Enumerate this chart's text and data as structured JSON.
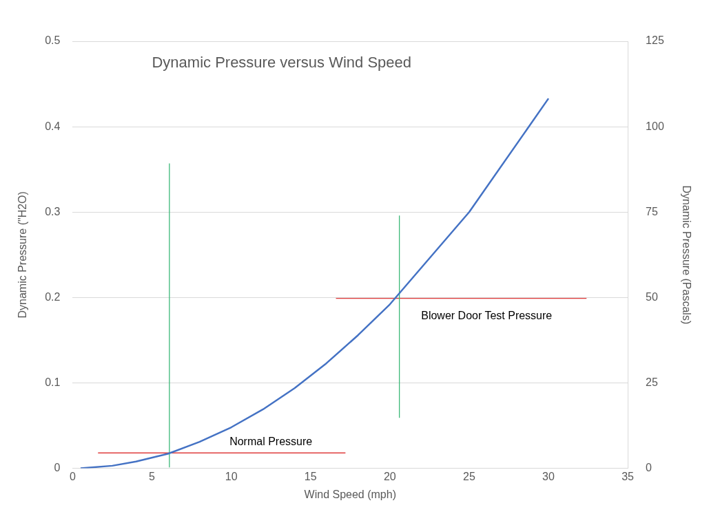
{
  "chart_data": {
    "type": "line",
    "title": "Dynamic Pressure versus Wind Speed",
    "xlabel": "Wind Speed (mph)",
    "ylabel": "Dynamic Pressure (\"H2O)",
    "y2label": "Dynamic Pressure (Pascals)",
    "x": [
      0.5,
      2.5,
      4,
      6,
      8,
      10,
      12,
      14,
      16,
      18,
      20,
      25,
      30
    ],
    "series": [
      {
        "color": "#4472c4",
        "values": [
          0,
          0.003,
          0.008,
          0.017,
          0.031,
          0.048,
          0.069,
          0.094,
          0.123,
          0.156,
          0.192,
          0.3,
          0.433
        ]
      },
      {
        "color": "#3cb878",
        "x": [
          6.1,
          6.1
        ],
        "values": [
          0.001,
          0.357
        ]
      },
      {
        "color": "#3cb878",
        "x": [
          20.6,
          20.6
        ],
        "values": [
          0.059,
          0.296
        ]
      },
      {
        "color": "#e03c3c",
        "x": [
          1.6,
          17.2
        ],
        "values": [
          0.018,
          0.018
        ]
      },
      {
        "color": "#e03c3c",
        "x": [
          16.6,
          32.4
        ],
        "values": [
          0.199,
          0.199
        ]
      }
    ],
    "annotations": [
      {
        "text": "Normal Pressure",
        "x": 12.5,
        "y": 0.018
      },
      {
        "text": "Blower Door Test Pressure",
        "x": 26.1,
        "y": 0.199
      }
    ],
    "xlim": [
      0,
      35
    ],
    "xticks": [
      0,
      5,
      10,
      15,
      20,
      25,
      30,
      35
    ],
    "ylim": [
      0,
      0.5
    ],
    "yticks": [
      0,
      0.1,
      0.2,
      0.3,
      0.4,
      0.5
    ],
    "y2lim": [
      0,
      125
    ],
    "y2ticks": [
      0,
      25,
      50,
      75,
      100,
      125
    ],
    "grid": "y",
    "legend": false,
    "marker": "none",
    "line_style": "solid"
  }
}
